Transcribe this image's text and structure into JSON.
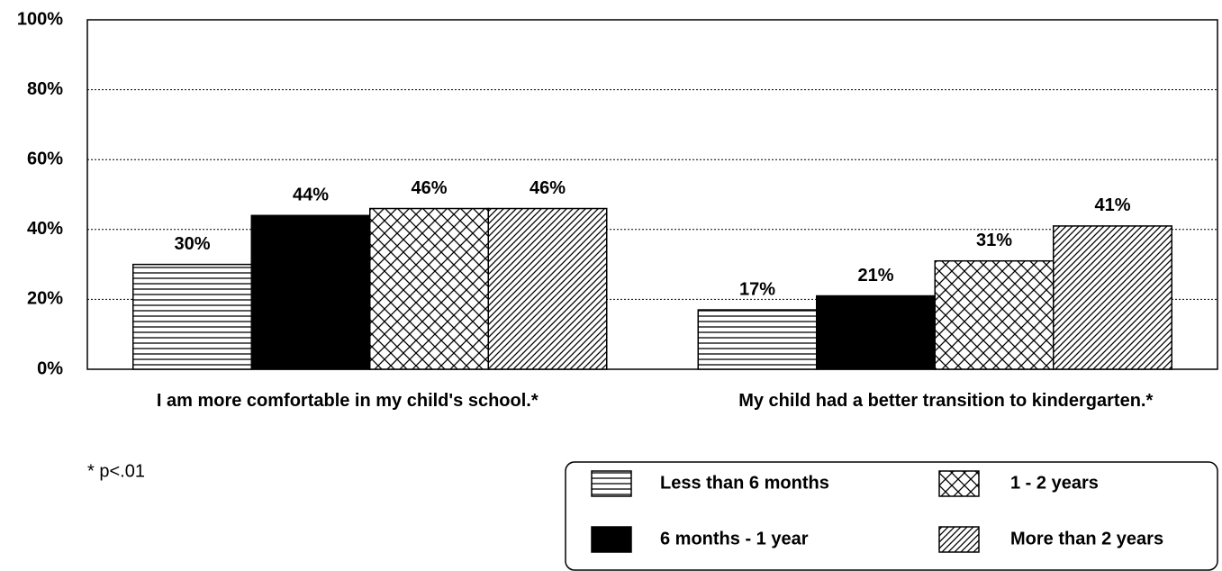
{
  "chart_data": {
    "type": "bar",
    "categories": [
      "I am more comfortable in my child's school.*",
      "My child had a better transition to kindergarten.*"
    ],
    "series": [
      {
        "name": "Less than 6 months",
        "color": "#000000",
        "pattern": "horizontal",
        "values": [
          30,
          17
        ],
        "value_labels": [
          "30%",
          "17%"
        ]
      },
      {
        "name": "6 months - 1 year",
        "color": "#000000",
        "pattern": "solid",
        "values": [
          44,
          21
        ],
        "value_labels": [
          "44%",
          "21%"
        ]
      },
      {
        "name": "1 - 2 years",
        "color": "#000000",
        "pattern": "crosshatch",
        "values": [
          46,
          31
        ],
        "value_labels": [
          "46%",
          "31%"
        ]
      },
      {
        "name": "More than 2 years",
        "color": "#000000",
        "pattern": "diagonal",
        "values": [
          46,
          41
        ],
        "value_labels": [
          "46%",
          "41%"
        ]
      }
    ],
    "ylim": [
      0,
      100
    ],
    "yticks": [
      {
        "value": 0,
        "label": "0%"
      },
      {
        "value": 20,
        "label": "20%"
      },
      {
        "value": 40,
        "label": "40%"
      },
      {
        "value": 60,
        "label": "60%"
      },
      {
        "value": 80,
        "label": "80%"
      },
      {
        "value": 100,
        "label": "100%"
      }
    ],
    "grid": true,
    "legend": "bottom-right",
    "footnote": "*   p<.01"
  }
}
